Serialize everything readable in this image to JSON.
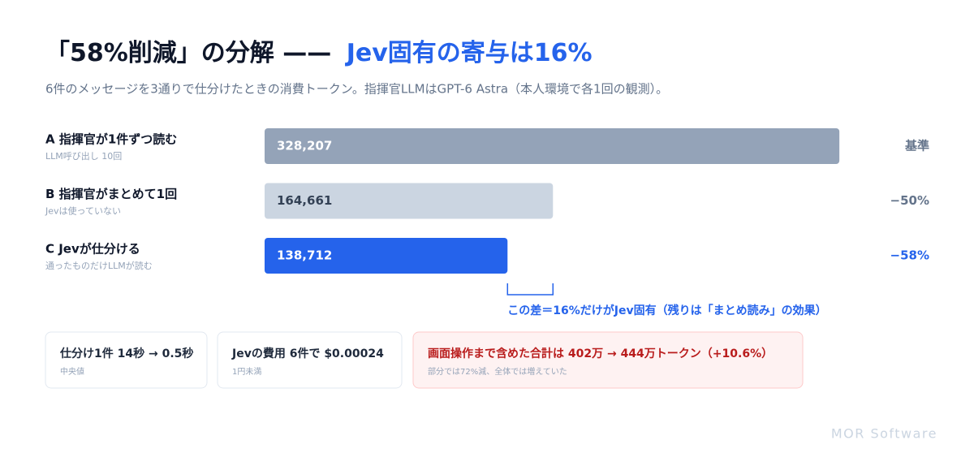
{
  "chart_data": {
    "type": "hbar",
    "title": [
      "「58%削減」の分解 ——",
      "Jev固有の寄与は16%"
    ],
    "subtitle": "6件のメッセージを3通りで仕分けたときの消費トークン。指揮官LLMはGPT-6 Astra（本人環境で各1回の観測）。",
    "categories": [
      "A 指揮官が1件ずつ読む",
      "B 指揮官がまとめて1回",
      "C Jevが仕分ける"
    ],
    "category_notes": [
      "LLM呼び出し 10回",
      "Jevは使っていない",
      "通ったものだけLLMが読む"
    ],
    "values": [
      328207,
      164661,
      138712
    ],
    "value_labels": [
      "328,207",
      "164,661",
      "138,712"
    ],
    "change_labels": [
      "基準",
      "−50%",
      "−58%"
    ],
    "colors": [
      "#94a3b8",
      "#cbd5e1",
      "#2563eb"
    ],
    "label_colors": [
      "#ffffff",
      "#334155",
      "#ffffff"
    ],
    "change_colors": [
      "#64748b",
      "#64748b",
      "#2563eb"
    ],
    "xlim": [
      0,
      330000
    ],
    "annotation": "この差＝16%だけがJev固有（残りは「まとめ読み」の効果）"
  },
  "cards": [
    {
      "text": "仕分け1件 14秒 → 0.5秒",
      "note": "中央値"
    },
    {
      "text": "Jevの費用 6件で $0.00024",
      "note": "1円未満"
    },
    {
      "text": "画面操作まで含めた合計は 402万 → 444万トークン（+10.6%）",
      "note": "部分では72%減、全体では増えていた"
    }
  ],
  "footer": "MOR Software"
}
